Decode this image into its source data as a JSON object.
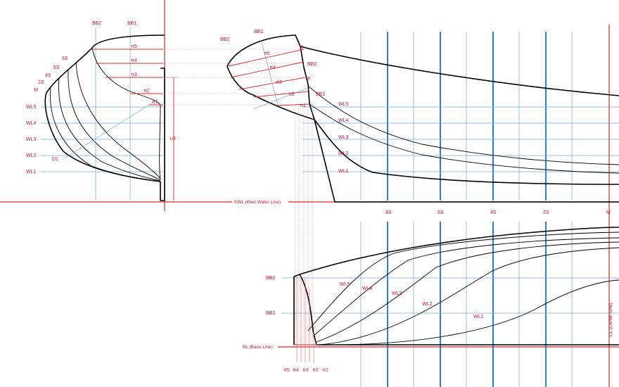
{
  "colors": {
    "construction_red": "#d62828",
    "label_red": "#c4122f",
    "station_blue": "#1f6fc4",
    "waterline_blue": "#6fa8dc",
    "hull_black": "#000000"
  },
  "body_plan": {
    "buttock_labels": [
      "BB2",
      "BB1"
    ],
    "station_labels": [
      "8S",
      "6S",
      "4S",
      "2S",
      "M"
    ],
    "waterline_labels": [
      "WL5",
      "WL4",
      "WL3",
      "WL2",
      "WL1"
    ],
    "pi_labels": [
      "π5",
      "π4",
      "π3",
      "π2",
      "π1"
    ],
    "diagonal_label": "D1",
    "height_label": "u3"
  },
  "profile": {
    "point_labels": [
      "BB1",
      "BB2",
      "K",
      "BB2",
      "E",
      "BB1"
    ],
    "pi_labels": [
      "π5",
      "π4",
      "π3",
      "π2",
      "π1"
    ],
    "waterline_labels": [
      "WL5",
      "WL4",
      "WL3",
      "WL2",
      "WL1"
    ],
    "keel_water_line": "KWL (Keel Water Line)",
    "station_labels": [
      "8S",
      "6S",
      "4S",
      "2S",
      "M"
    ]
  },
  "plan_view": {
    "buttock_labels": [
      "BB2",
      "BB1"
    ],
    "base_line": "BL (Base Line)",
    "center_line": "CL (Center Line)",
    "waterline_labels": [
      "WL5",
      "WL4",
      "WL3",
      "WL2",
      "WL1"
    ],
    "pi_labels": [
      "π5",
      "π4",
      "π3",
      "π2",
      "π1"
    ]
  }
}
